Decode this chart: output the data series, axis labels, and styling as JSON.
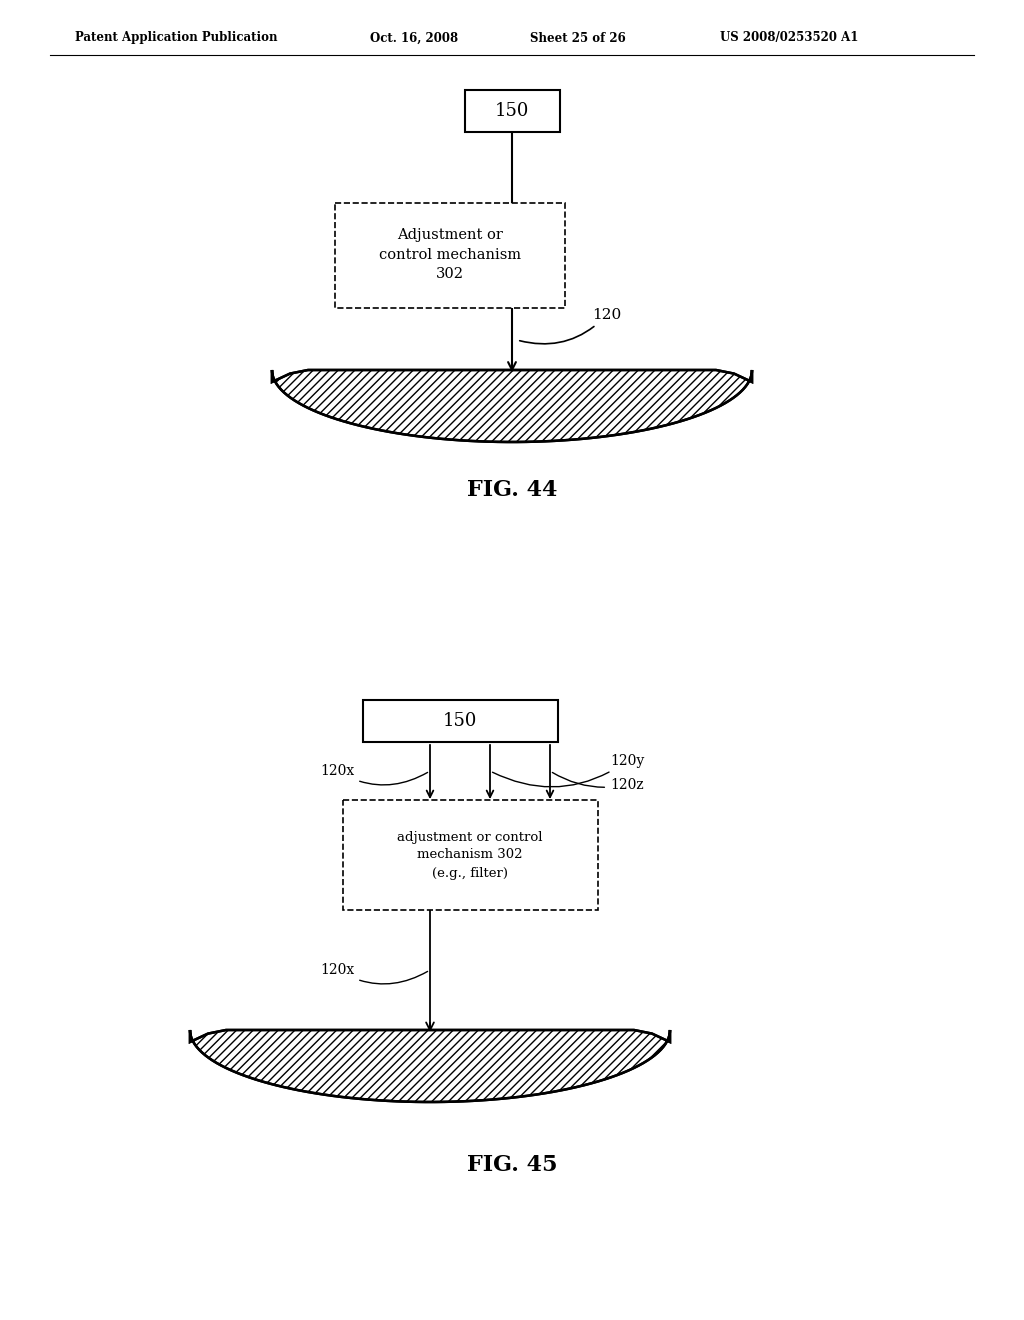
{
  "bg_color": "#ffffff",
  "header_text": "Patent Application Publication",
  "header_date": "Oct. 16, 2008",
  "header_sheet": "Sheet 25 of 26",
  "header_patent": "US 2008/0253520 A1",
  "fig44": {
    "caption": "FIG. 44",
    "box150_label": "150",
    "dashed_box_label": "Adjustment or\ncontrol mechanism\n302",
    "line_label": "120"
  },
  "fig45": {
    "caption": "FIG. 45",
    "box150_label": "150",
    "dashed_box_label": "adjustment or control\nmechanism 302\n(e.g., filter)",
    "label_120x": "120x",
    "label_120y": "120y",
    "label_120z": "120z"
  }
}
